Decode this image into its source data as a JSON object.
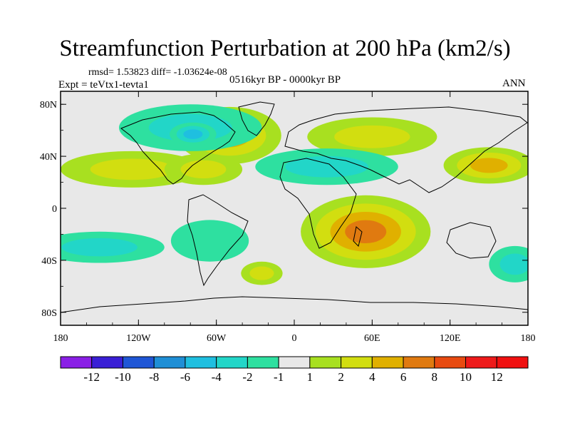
{
  "title": "Streamfunction Perturbation at 200 hPa (km2/s)",
  "stats": "rmsd= 1.53823  diff= -1.03624e-08",
  "experiment": "Expt = teVtx1-tevta1",
  "period": "0516kyr BP - 0000kyr BP",
  "season": "ANN",
  "map_data": {
    "lon_range": [
      -180,
      180
    ],
    "lat_range": [
      -90,
      90
    ],
    "lat_ticks": [
      "80N",
      "40N",
      "0",
      "40S",
      "80S"
    ],
    "lon_ticks": [
      "180",
      "120W",
      "60W",
      "0",
      "60E",
      "120E",
      "180"
    ],
    "colorbar": {
      "labels": [
        "-12",
        "-10",
        "-8",
        "-6",
        "-4",
        "-2",
        "-1",
        "1",
        "2",
        "4",
        "6",
        "8",
        "10",
        "12"
      ],
      "colors": [
        "#8a1fe6",
        "#3a1fd6",
        "#1f56d6",
        "#1f8fd6",
        "#1fbfe0",
        "#22d6c8",
        "#2ee0a0",
        "#e8e8e8",
        "#a8e020",
        "#d2de10",
        "#e0b000",
        "#e07a10",
        "#e84a10",
        "#ee1a1a"
      ],
      "neutral_color": "#e8e8e8"
    },
    "features": [
      {
        "name": "north-atlantic-high",
        "lon": -50,
        "lat": 56,
        "rlon": 40,
        "rlat": 22,
        "level": 4
      },
      {
        "name": "central-pacific-high",
        "lon": -125,
        "lat": 30,
        "rlon": 55,
        "rlat": 14,
        "level": 2
      },
      {
        "name": "central-america-high",
        "lon": -70,
        "lat": 30,
        "rlon": 30,
        "rlat": 12,
        "level": 2
      },
      {
        "name": "high-latitude-low",
        "lon": -80,
        "lat": 62,
        "rlon": 55,
        "rlat": 18,
        "level": -2
      },
      {
        "name": "hudson-low",
        "lon": -78,
        "lat": 57,
        "rlon": 18,
        "rlat": 9,
        "level": -4
      },
      {
        "name": "central-asia-high",
        "lon": 60,
        "lat": 55,
        "rlon": 50,
        "rlat": 15,
        "level": 2
      },
      {
        "name": "mediterranean-low",
        "lon": 25,
        "lat": 32,
        "rlon": 55,
        "rlat": 14,
        "level": -2
      },
      {
        "name": "north-pacific-high",
        "lon": 150,
        "lat": 33,
        "rlon": 35,
        "rlat": 14,
        "level": 4
      },
      {
        "name": "south-indian-high",
        "lon": 55,
        "lat": -18,
        "rlon": 50,
        "rlat": 28,
        "level": 6
      },
      {
        "name": "south-pacific-low",
        "lon": -150,
        "lat": -30,
        "rlon": 50,
        "rlat": 12,
        "level": -2
      },
      {
        "name": "south-america-low",
        "lon": -65,
        "lat": -25,
        "rlon": 30,
        "rlat": 16,
        "level": -1
      },
      {
        "name": "south-atlantic-high",
        "lon": -25,
        "lat": -50,
        "rlon": 16,
        "rlat": 9,
        "level": 2
      },
      {
        "name": "southwest-pacific-low",
        "lon": 170,
        "lat": -43,
        "rlon": 20,
        "rlat": 14,
        "level": -2
      }
    ]
  }
}
